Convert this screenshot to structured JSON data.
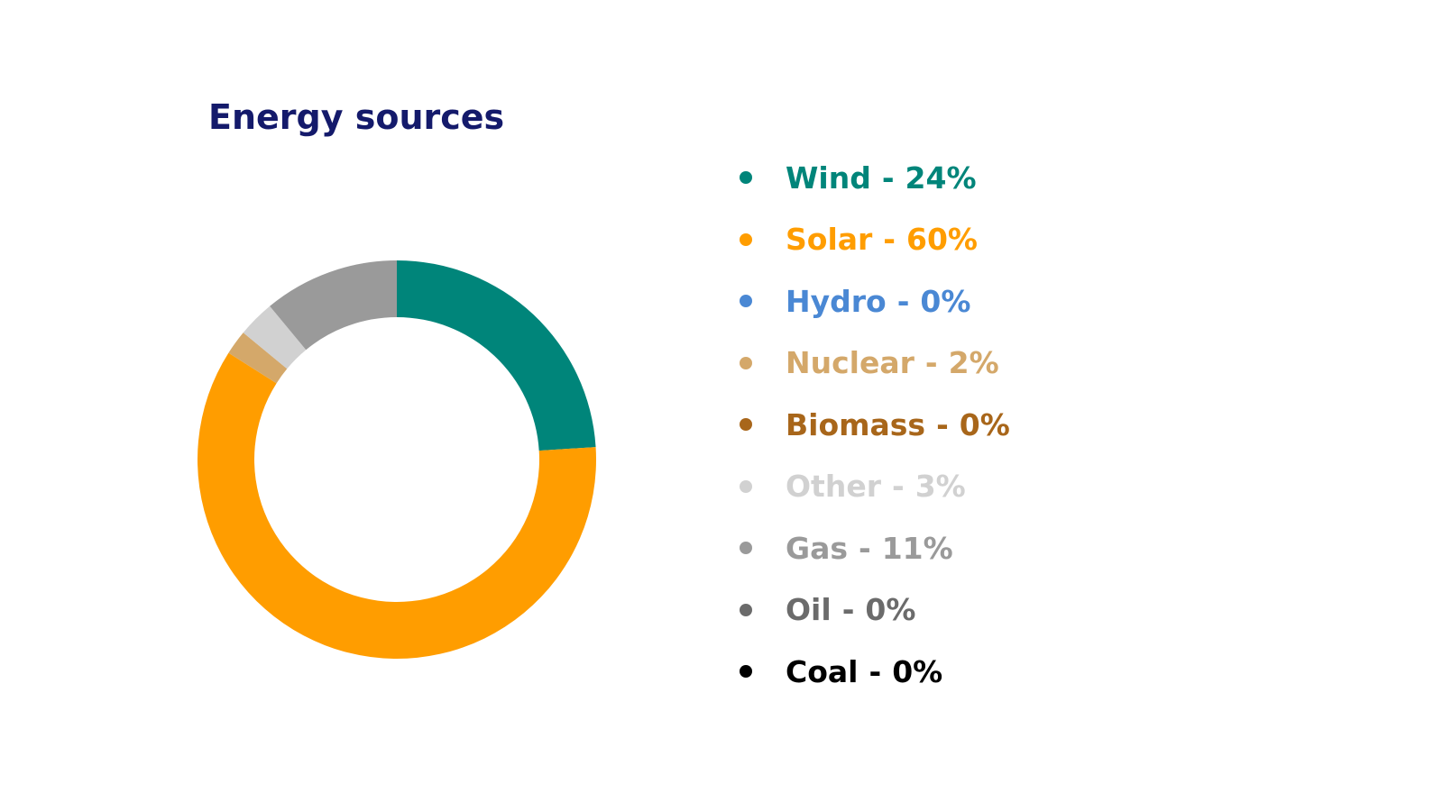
{
  "chart_data": {
    "type": "pie",
    "title": "Energy sources",
    "series": [
      {
        "name": "Wind",
        "value": 24,
        "color": "#00857a"
      },
      {
        "name": "Solar",
        "value": 60,
        "color": "#ff9d00"
      },
      {
        "name": "Hydro",
        "value": 0,
        "color": "#4a88d4"
      },
      {
        "name": "Nuclear",
        "value": 2,
        "color": "#d4a86a"
      },
      {
        "name": "Biomass",
        "value": 0,
        "color": "#a8661a"
      },
      {
        "name": "Other",
        "value": 3,
        "color": "#d1d1d1"
      },
      {
        "name": "Gas",
        "value": 11,
        "color": "#9a9a9a"
      },
      {
        "name": "Oil",
        "value": 0,
        "color": "#6b6b6b"
      },
      {
        "name": "Coal",
        "value": 0,
        "color": "#000000"
      }
    ],
    "value_suffix": "%",
    "separator": "-",
    "legend_position": "right",
    "donut": true
  }
}
